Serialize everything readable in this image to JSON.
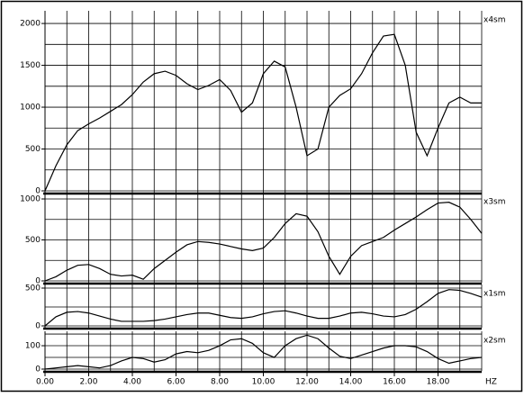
{
  "chart_data": [
    {
      "type": "line",
      "label": "x4sm",
      "color": "#000000",
      "xlim": [
        0,
        20
      ],
      "ylim": [
        0,
        2130
      ],
      "yticks": [
        0,
        500,
        1000,
        1500,
        2000
      ],
      "xgrid_step": 1,
      "ygrid_step": 250,
      "x": [
        0,
        0.5,
        1,
        1.5,
        2,
        2.5,
        3,
        3.5,
        4,
        4.5,
        5,
        5.5,
        6,
        6.5,
        7,
        7.5,
        8,
        8.5,
        9,
        9.5,
        10,
        10.5,
        11,
        11.5,
        12,
        12.5,
        13,
        13.5,
        14,
        14.5,
        15,
        15.5,
        16,
        16.5,
        17,
        17.5,
        18,
        18.5,
        19,
        19.5,
        20
      ],
      "values": [
        0,
        300,
        550,
        720,
        800,
        870,
        950,
        1030,
        1150,
        1300,
        1400,
        1430,
        1380,
        1280,
        1210,
        1260,
        1330,
        1200,
        940,
        1050,
        1400,
        1550,
        1480,
        1000,
        420,
        500,
        1000,
        1140,
        1220,
        1400,
        1650,
        1850,
        1870,
        1500,
        700,
        420,
        750,
        1050,
        1120,
        1050,
        1050
      ]
    },
    {
      "type": "line",
      "label": "x3sm",
      "color": "#000000",
      "xlim": [
        0,
        20
      ],
      "ylim": [
        0,
        1055
      ],
      "yticks": [
        0,
        500,
        1000
      ],
      "xgrid_step": 1,
      "ygrid_step": 250,
      "x": [
        0,
        0.5,
        1,
        1.5,
        2,
        2.5,
        3,
        3.5,
        4,
        4.5,
        5,
        5.5,
        6,
        6.5,
        7,
        7.5,
        8,
        8.5,
        9,
        9.5,
        10,
        10.5,
        11,
        11.5,
        12,
        12.5,
        13,
        13.5,
        14,
        14.5,
        15,
        15.5,
        16,
        16.5,
        17,
        17.5,
        18,
        18.5,
        19,
        19.5,
        20
      ],
      "values": [
        0,
        50,
        130,
        190,
        200,
        150,
        80,
        60,
        70,
        20,
        150,
        250,
        350,
        440,
        480,
        470,
        450,
        420,
        390,
        370,
        400,
        530,
        700,
        820,
        790,
        600,
        300,
        80,
        300,
        430,
        480,
        530,
        620,
        700,
        780,
        870,
        950,
        960,
        900,
        750,
        580
      ]
    },
    {
      "type": "line",
      "label": "x1sm",
      "color": "#000000",
      "xlim": [
        0,
        20
      ],
      "ylim": [
        0,
        524
      ],
      "yticks": [
        0,
        500
      ],
      "xgrid_step": 1,
      "ygrid_step": 250,
      "x": [
        0,
        0.5,
        1,
        1.5,
        2,
        2.5,
        3,
        3.5,
        4,
        4.5,
        5,
        5.5,
        6,
        6.5,
        7,
        7.5,
        8,
        8.5,
        9,
        9.5,
        10,
        10.5,
        11,
        11.5,
        12,
        12.5,
        13,
        13.5,
        14,
        14.5,
        15,
        15.5,
        16,
        16.5,
        17,
        17.5,
        18,
        18.5,
        19,
        19.5,
        20
      ],
      "values": [
        0,
        120,
        180,
        190,
        170,
        130,
        90,
        60,
        60,
        60,
        70,
        90,
        120,
        150,
        170,
        170,
        140,
        110,
        100,
        120,
        160,
        190,
        200,
        170,
        130,
        100,
        100,
        130,
        170,
        180,
        160,
        130,
        120,
        150,
        220,
        320,
        430,
        480,
        470,
        430,
        380
      ]
    },
    {
      "type": "line",
      "label": "x2sm",
      "color": "#000000",
      "xlim": [
        0,
        20
      ],
      "ylim": [
        0,
        154
      ],
      "yticks": [
        0,
        100
      ],
      "xgrid_step": 1,
      "ygrid_step": 50,
      "x_label": "HZ",
      "xticks": [
        {
          "value": 0,
          "label": "0.00"
        },
        {
          "value": 2,
          "label": "2.00"
        },
        {
          "value": 4,
          "label": "4.00"
        },
        {
          "value": 6,
          "label": "6.00"
        },
        {
          "value": 8,
          "label": "8.00"
        },
        {
          "value": 10,
          "label": "10.00"
        },
        {
          "value": 12,
          "label": "12.00"
        },
        {
          "value": 14,
          "label": "14.00"
        },
        {
          "value": 16,
          "label": "16.00"
        },
        {
          "value": 18,
          "label": "18.00"
        }
      ],
      "x": [
        0,
        0.5,
        1,
        1.5,
        2,
        2.5,
        3,
        3.5,
        4,
        4.5,
        5,
        5.5,
        6,
        6.5,
        7,
        7.5,
        8,
        8.5,
        9,
        9.5,
        10,
        10.5,
        11,
        11.5,
        12,
        12.5,
        13,
        13.5,
        14,
        14.5,
        15,
        15.5,
        16,
        16.5,
        17,
        17.5,
        18,
        18.5,
        19,
        19.5,
        20
      ],
      "values": [
        0,
        5,
        10,
        15,
        10,
        5,
        15,
        35,
        50,
        45,
        30,
        40,
        65,
        75,
        70,
        80,
        100,
        125,
        130,
        110,
        70,
        50,
        100,
        130,
        145,
        130,
        90,
        55,
        45,
        60,
        75,
        90,
        100,
        100,
        95,
        75,
        45,
        25,
        35,
        45,
        50
      ]
    }
  ]
}
